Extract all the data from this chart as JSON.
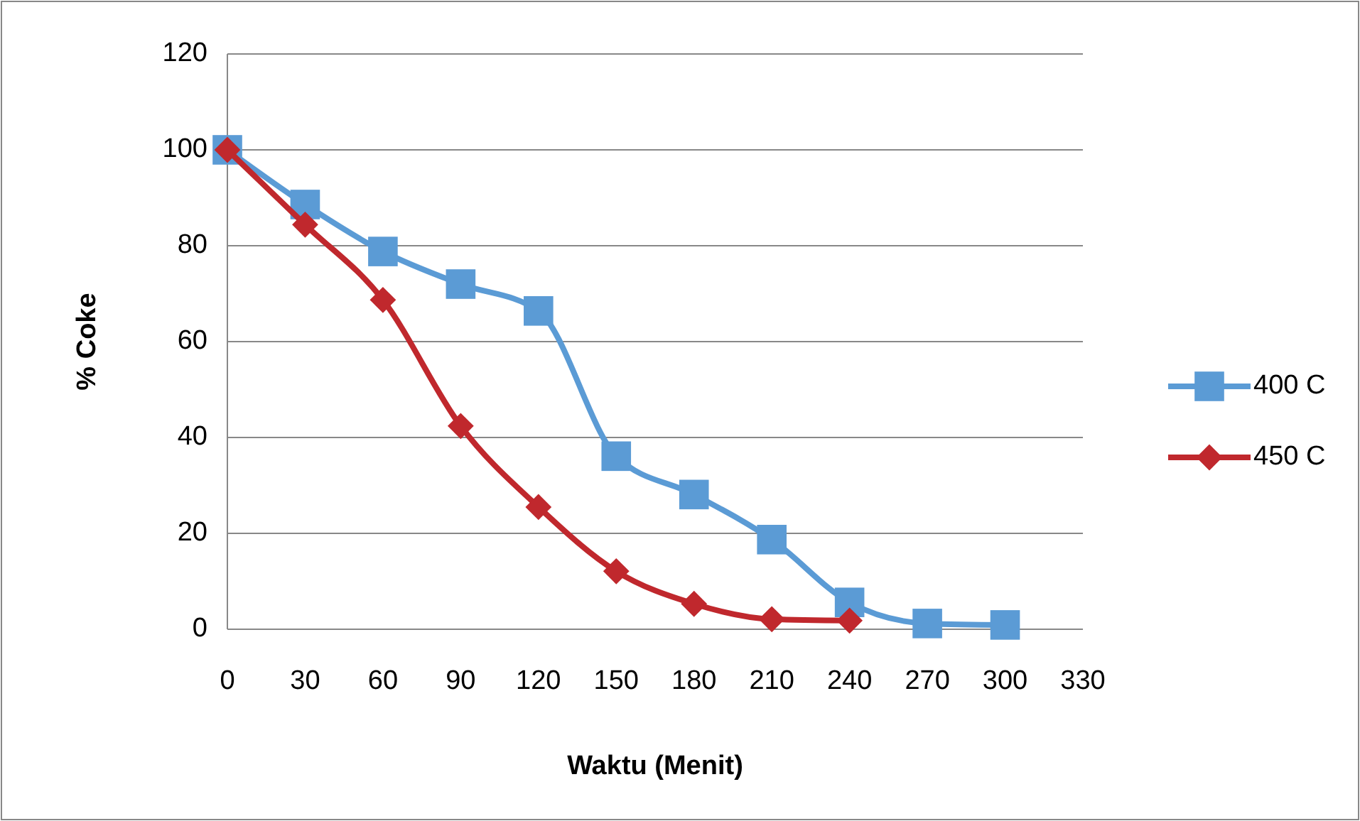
{
  "chart_data": {
    "type": "line",
    "xlabel": "Waktu (Menit)",
    "ylabel": "% Coke",
    "xlim": [
      0,
      330
    ],
    "xticks": [
      0,
      30,
      60,
      90,
      120,
      150,
      180,
      210,
      240,
      270,
      300,
      330
    ],
    "ylim": [
      0,
      120
    ],
    "yticks": [
      0,
      20,
      40,
      60,
      80,
      100,
      120
    ],
    "grid": "y",
    "legend": "right",
    "series": [
      {
        "name": "400 C",
        "color": "#5b9bd5",
        "marker": "square",
        "x": [
          0,
          30,
          60,
          90,
          120,
          150,
          180,
          210,
          240,
          270,
          300
        ],
        "values": [
          100,
          88.6,
          78.8,
          72,
          66.4,
          36.1,
          28.1,
          18.7,
          5.6,
          1.2,
          0.9
        ]
      },
      {
        "name": "450 C",
        "color": "#c0282d",
        "marker": "diamond",
        "x": [
          0,
          30,
          60,
          90,
          120,
          150,
          180,
          210,
          240
        ],
        "values": [
          100,
          84.4,
          68.7,
          42.4,
          25.5,
          12.1,
          5.3,
          2.1,
          1.8
        ]
      }
    ]
  }
}
